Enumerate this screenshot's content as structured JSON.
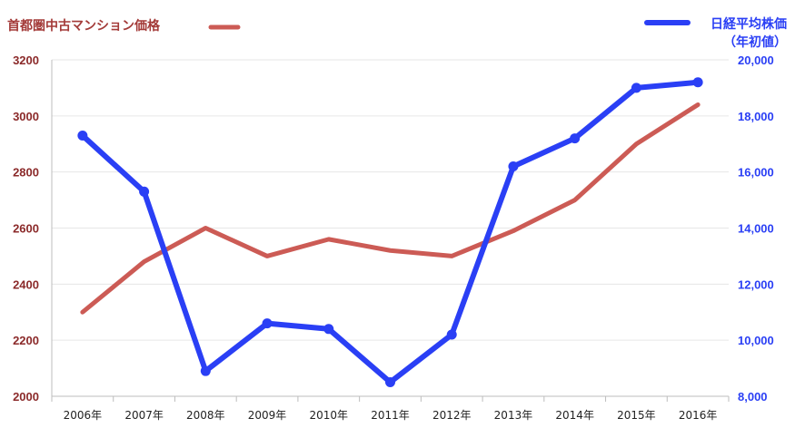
{
  "chart_data": {
    "type": "line",
    "categories": [
      "2006年",
      "2007年",
      "2008年",
      "2009年",
      "2010年",
      "2011年",
      "2012年",
      "2013年",
      "2014年",
      "2015年",
      "2016年"
    ],
    "series": [
      {
        "name": "首都圏中古マンション価格",
        "axis": "left",
        "color": "#cc5b55",
        "values": [
          2300,
          2480,
          2600,
          2500,
          2560,
          2520,
          2500,
          2590,
          2700,
          2900,
          3040
        ]
      },
      {
        "name_lines": [
          "日経平均株価",
          "（年初値）"
        ],
        "axis": "right",
        "color": "#2a3ff5",
        "values": [
          17300,
          15300,
          8900,
          10600,
          10400,
          8500,
          10200,
          16200,
          17200,
          19000,
          19200
        ]
      }
    ],
    "left_axis": {
      "ylim": [
        2000,
        3200
      ],
      "ticks": [
        "2000",
        "2200",
        "2400",
        "2600",
        "2800",
        "3000",
        "3200"
      ],
      "color": "#8b2a2a"
    },
    "right_axis": {
      "ylim": [
        8000,
        20000
      ],
      "ticks": [
        "8,000",
        "10,000",
        "12,000",
        "14,000",
        "16,000",
        "18,000",
        "20,000"
      ],
      "color": "#2a3ff5"
    },
    "grid": true,
    "legend": "top"
  }
}
